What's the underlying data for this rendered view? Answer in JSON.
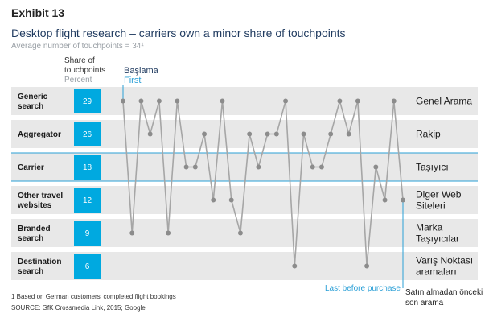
{
  "header": {
    "exhibit": "Exhibit 13",
    "title": "Desktop flight research – carriers own a minor share of touchpoints",
    "subtitle": "Average number of touchpoints = 34¹"
  },
  "share_header": {
    "line1": "Share of",
    "line2": "touchpoints",
    "unit": "Percent"
  },
  "first_label": {
    "tr": "Başlama",
    "en": "First"
  },
  "last_label": {
    "en": "Last before purchase",
    "tr": "Satın almadan önceki son arama"
  },
  "footnote": "1 Based on German customers' completed flight bookings",
  "source": "SOURCE: GfK Crossmedia Link, 2015; Google",
  "colors": {
    "box": "#00a9e0",
    "row": "#e8e8e8",
    "accent": "#2a9fd6",
    "line": "#a6a6a6",
    "point": "#8c8c8c"
  },
  "chart_data": {
    "type": "line",
    "categories": [
      {
        "label": "Generic search",
        "share": 29,
        "tr": "Genel Arama"
      },
      {
        "label": "Aggregator",
        "share": 26,
        "tr": "Rakip"
      },
      {
        "label": "Carrier",
        "share": 18,
        "tr": "Taşıyıcı"
      },
      {
        "label": "Other travel websites",
        "share": 12,
        "tr": "Diger Web Siteleri"
      },
      {
        "label": "Branded search",
        "share": 9,
        "tr": "Marka Taşıyıcılar"
      },
      {
        "label": "Destination search",
        "share": 6,
        "tr": "Varış Noktası aramaları"
      }
    ],
    "touchpoint_sequence": [
      0,
      4,
      0,
      1,
      0,
      4,
      0,
      2,
      2,
      1,
      3,
      0,
      3,
      4,
      1,
      2,
      1,
      1,
      0,
      5,
      1,
      2,
      2,
      1,
      0,
      1,
      0,
      5,
      2,
      3,
      0,
      3
    ],
    "highlighted_row": 2
  }
}
